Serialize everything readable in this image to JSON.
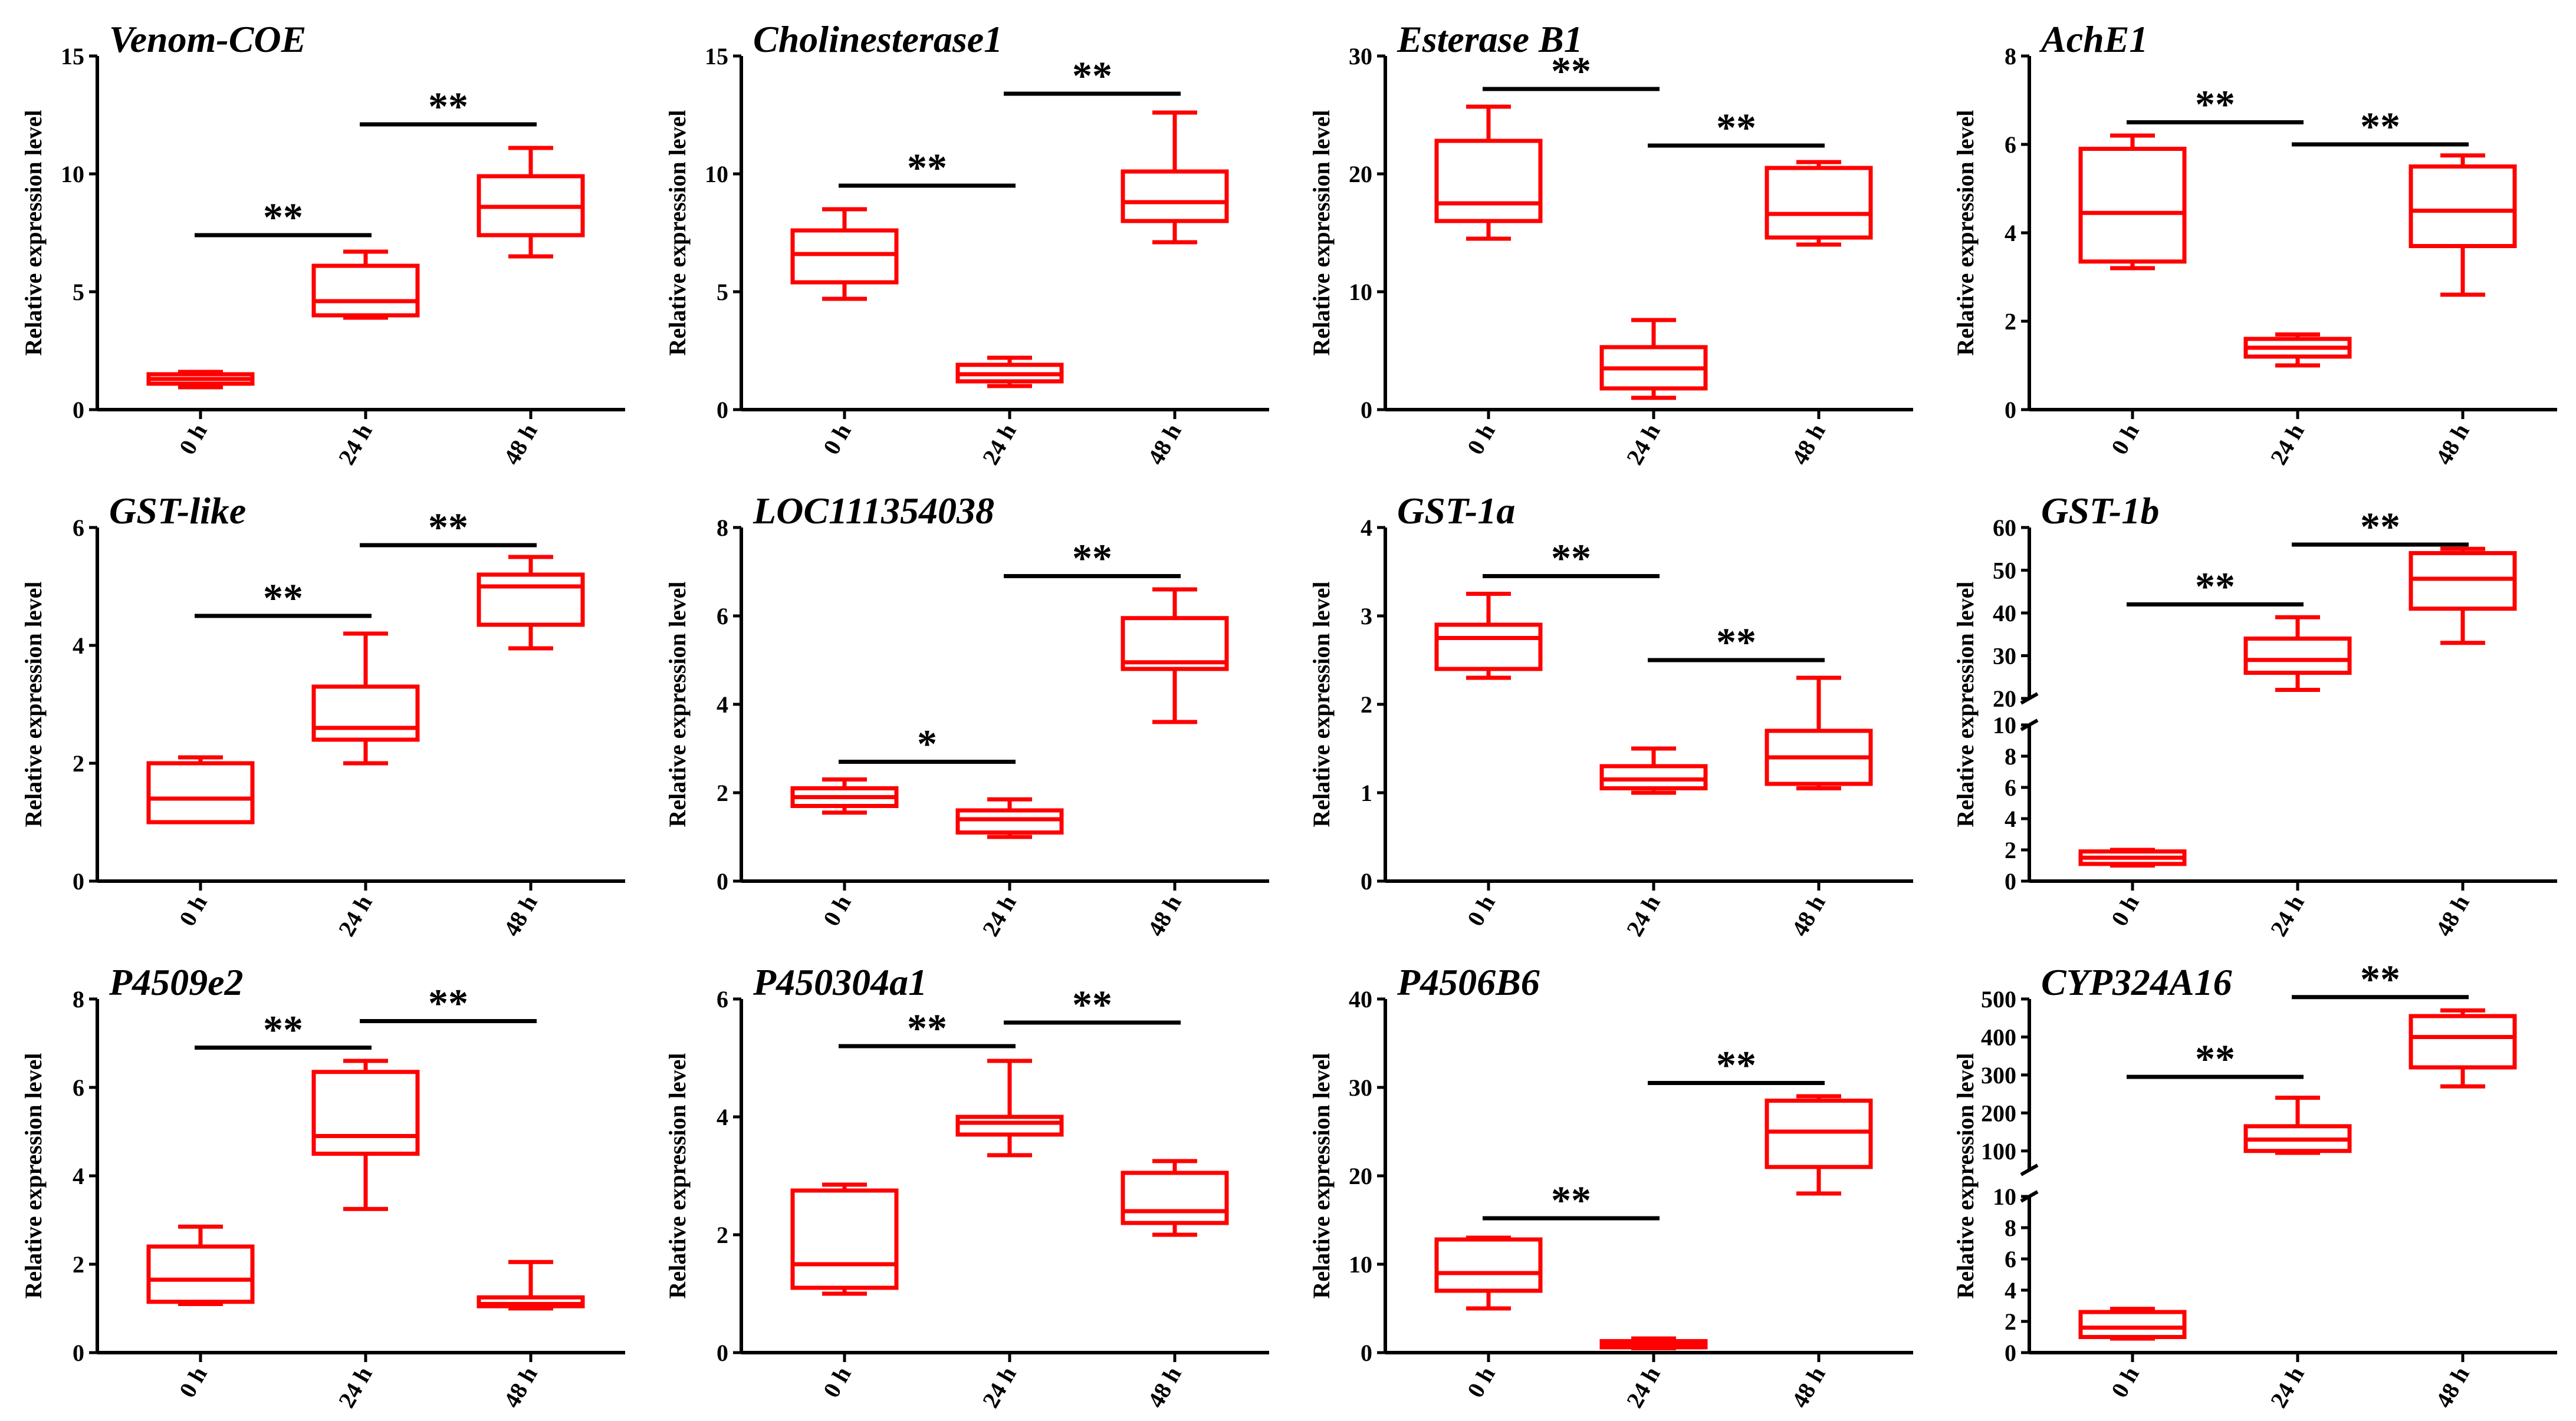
{
  "style": {
    "box_color": "#ff0000",
    "axis_color": "#000000"
  },
  "chart_data": [
    {
      "type": "box",
      "title": "Venom-COE",
      "ylabel": "Relative expression level",
      "categories": [
        "0 h",
        "24 h",
        "48 h"
      ],
      "ylim": [
        0,
        15
      ],
      "yticks": [
        0,
        5,
        10,
        15
      ],
      "boxes": [
        {
          "min": 0.95,
          "q1": 1.1,
          "median": 1.3,
          "q3": 1.5,
          "max": 1.6
        },
        {
          "min": 3.9,
          "q1": 4.0,
          "median": 4.6,
          "q3": 6.1,
          "max": 6.7
        },
        {
          "min": 6.5,
          "q1": 7.4,
          "median": 8.6,
          "q3": 9.9,
          "max": 11.1
        }
      ],
      "significance": [
        {
          "from": 0,
          "to": 1,
          "label": "**",
          "y": 7.4
        },
        {
          "from": 1,
          "to": 2,
          "label": "**",
          "y": 12.1
        }
      ]
    },
    {
      "type": "box",
      "title": "Cholinesterase1",
      "ylabel": "Relative expression level",
      "categories": [
        "0 h",
        "24 h",
        "48 h"
      ],
      "ylim": [
        0,
        15
      ],
      "yticks": [
        0,
        5,
        10,
        15
      ],
      "boxes": [
        {
          "min": 4.7,
          "q1": 5.4,
          "median": 6.6,
          "q3": 7.6,
          "max": 8.5
        },
        {
          "min": 1.0,
          "q1": 1.2,
          "median": 1.5,
          "q3": 1.9,
          "max": 2.2
        },
        {
          "min": 7.1,
          "q1": 8.0,
          "median": 8.8,
          "q3": 10.1,
          "max": 12.6
        }
      ],
      "significance": [
        {
          "from": 0,
          "to": 1,
          "label": "**",
          "y": 9.5
        },
        {
          "from": 1,
          "to": 2,
          "label": "**",
          "y": 13.4
        }
      ]
    },
    {
      "type": "box",
      "title": "Esterase B1",
      "ylabel": "Relative expression level",
      "categories": [
        "0 h",
        "24 h",
        "48 h"
      ],
      "ylim": [
        0,
        30
      ],
      "yticks": [
        0,
        10,
        20,
        30
      ],
      "boxes": [
        {
          "min": 14.5,
          "q1": 16.0,
          "median": 17.5,
          "q3": 22.8,
          "max": 25.7
        },
        {
          "min": 1.0,
          "q1": 1.8,
          "median": 3.5,
          "q3": 5.3,
          "max": 7.6
        },
        {
          "min": 14.0,
          "q1": 14.6,
          "median": 16.6,
          "q3": 20.5,
          "max": 21.0
        }
      ],
      "significance": [
        {
          "from": 0,
          "to": 1,
          "label": "**",
          "y": 27.2
        },
        {
          "from": 1,
          "to": 2,
          "label": "**",
          "y": 22.4
        }
      ]
    },
    {
      "type": "box",
      "title": "AchE1",
      "ylabel": "Relative expression level",
      "categories": [
        "0 h",
        "24 h",
        "48 h"
      ],
      "ylim": [
        0,
        8
      ],
      "yticks": [
        0,
        2,
        4,
        6,
        8
      ],
      "boxes": [
        {
          "min": 3.2,
          "q1": 3.35,
          "median": 4.45,
          "q3": 5.9,
          "max": 6.2
        },
        {
          "min": 1.0,
          "q1": 1.2,
          "median": 1.4,
          "q3": 1.6,
          "max": 1.7
        },
        {
          "min": 2.6,
          "q1": 3.7,
          "median": 4.5,
          "q3": 5.5,
          "max": 5.75
        }
      ],
      "significance": [
        {
          "from": 0,
          "to": 1,
          "label": "**",
          "y": 6.5
        },
        {
          "from": 1,
          "to": 2,
          "label": "**",
          "y": 6.0
        }
      ]
    },
    {
      "type": "box",
      "title": "GST-like",
      "ylabel": "Relative expression level",
      "categories": [
        "0 h",
        "24 h",
        "48 h"
      ],
      "ylim": [
        0,
        6
      ],
      "yticks": [
        0,
        2,
        4,
        6
      ],
      "boxes": [
        {
          "min": 1.0,
          "q1": 1.0,
          "median": 1.4,
          "q3": 2.0,
          "max": 2.1
        },
        {
          "min": 2.0,
          "q1": 2.4,
          "median": 2.6,
          "q3": 3.3,
          "max": 4.2
        },
        {
          "min": 3.95,
          "q1": 4.35,
          "median": 5.0,
          "q3": 5.2,
          "max": 5.5
        }
      ],
      "significance": [
        {
          "from": 0,
          "to": 1,
          "label": "**",
          "y": 4.5
        },
        {
          "from": 1,
          "to": 2,
          "label": "**",
          "y": 5.7
        }
      ]
    },
    {
      "type": "box",
      "title": "LOC111354038",
      "ylabel": "Relative expression level",
      "categories": [
        "0 h",
        "24 h",
        "48 h"
      ],
      "ylim": [
        0,
        8
      ],
      "yticks": [
        0,
        2,
        4,
        6,
        8
      ],
      "boxes": [
        {
          "min": 1.55,
          "q1": 1.7,
          "median": 1.9,
          "q3": 2.1,
          "max": 2.3
        },
        {
          "min": 1.0,
          "q1": 1.1,
          "median": 1.4,
          "q3": 1.6,
          "max": 1.85
        },
        {
          "min": 3.6,
          "q1": 4.8,
          "median": 4.95,
          "q3": 5.95,
          "max": 6.6
        }
      ],
      "significance": [
        {
          "from": 0,
          "to": 1,
          "label": "*",
          "y": 2.7
        },
        {
          "from": 1,
          "to": 2,
          "label": "**",
          "y": 6.9
        }
      ]
    },
    {
      "type": "box",
      "title": "GST-1a",
      "ylabel": "Relative expression level",
      "categories": [
        "0 h",
        "24 h",
        "48 h"
      ],
      "ylim": [
        0,
        4
      ],
      "yticks": [
        0,
        1,
        2,
        3,
        4
      ],
      "boxes": [
        {
          "min": 2.3,
          "q1": 2.4,
          "median": 2.75,
          "q3": 2.9,
          "max": 3.25
        },
        {
          "min": 1.0,
          "q1": 1.05,
          "median": 1.15,
          "q3": 1.3,
          "max": 1.5
        },
        {
          "min": 1.05,
          "q1": 1.1,
          "median": 1.4,
          "q3": 1.7,
          "max": 2.3
        }
      ],
      "significance": [
        {
          "from": 0,
          "to": 1,
          "label": "**",
          "y": 3.45
        },
        {
          "from": 1,
          "to": 2,
          "label": "**",
          "y": 2.5
        }
      ]
    },
    {
      "type": "box",
      "title": "GST-1b",
      "ylabel": "Relative expression level",
      "categories": [
        "0 h",
        "24 h",
        "48 h"
      ],
      "broken_axis": true,
      "ylim_lower": [
        0,
        10
      ],
      "yticks_lower": [
        0,
        2,
        4,
        6,
        8,
        10
      ],
      "ylim_upper": [
        20,
        60
      ],
      "yticks_upper": [
        20,
        30,
        40,
        50,
        60
      ],
      "boxes": [
        {
          "min": 1.0,
          "q1": 1.1,
          "median": 1.5,
          "q3": 1.9,
          "max": 2.0
        },
        {
          "min": 22,
          "q1": 26,
          "median": 29,
          "q3": 34,
          "max": 39
        },
        {
          "min": 33,
          "q1": 41,
          "median": 48,
          "q3": 54,
          "max": 55
        }
      ],
      "significance": [
        {
          "from": 0,
          "to": 1,
          "label": "**",
          "y": 42
        },
        {
          "from": 1,
          "to": 2,
          "label": "**",
          "y": 56
        }
      ]
    },
    {
      "type": "box",
      "title": "P4509e2",
      "ylabel": "Relative expression level",
      "categories": [
        "0 h",
        "24 h",
        "48 h"
      ],
      "ylim": [
        0,
        8
      ],
      "yticks": [
        0,
        2,
        4,
        6,
        8
      ],
      "boxes": [
        {
          "min": 1.1,
          "q1": 1.15,
          "median": 1.65,
          "q3": 2.4,
          "max": 2.85
        },
        {
          "min": 3.25,
          "q1": 4.5,
          "median": 4.9,
          "q3": 6.35,
          "max": 6.6
        },
        {
          "min": 1.0,
          "q1": 1.05,
          "median": 1.1,
          "q3": 1.25,
          "max": 2.05
        }
      ],
      "significance": [
        {
          "from": 0,
          "to": 1,
          "label": "**",
          "y": 6.9
        },
        {
          "from": 1,
          "to": 2,
          "label": "**",
          "y": 7.5
        }
      ]
    },
    {
      "type": "box",
      "title": "P450304a1",
      "ylabel": "Relative expression level",
      "categories": [
        "0 h",
        "24 h",
        "48 h"
      ],
      "ylim": [
        0,
        6
      ],
      "yticks": [
        0,
        2,
        4,
        6
      ],
      "boxes": [
        {
          "min": 1.0,
          "q1": 1.1,
          "median": 1.5,
          "q3": 2.75,
          "max": 2.85
        },
        {
          "min": 3.35,
          "q1": 3.7,
          "median": 3.9,
          "q3": 4.0,
          "max": 4.95
        },
        {
          "min": 2.0,
          "q1": 2.2,
          "median": 2.4,
          "q3": 3.05,
          "max": 3.25
        }
      ],
      "significance": [
        {
          "from": 0,
          "to": 1,
          "label": "**",
          "y": 5.2
        },
        {
          "from": 1,
          "to": 2,
          "label": "**",
          "y": 5.6
        }
      ]
    },
    {
      "type": "box",
      "title": "P4506B6",
      "ylabel": "Relative expression level",
      "categories": [
        "0 h",
        "24 h",
        "48 h"
      ],
      "ylim": [
        0,
        40
      ],
      "yticks": [
        0,
        10,
        20,
        30,
        40
      ],
      "boxes": [
        {
          "min": 5.0,
          "q1": 7.0,
          "median": 9.0,
          "q3": 12.8,
          "max": 13.0
        },
        {
          "min": 0.5,
          "q1": 0.6,
          "median": 0.9,
          "q3": 1.3,
          "max": 1.6
        },
        {
          "min": 18.0,
          "q1": 21.0,
          "median": 25.0,
          "q3": 28.5,
          "max": 29.0
        }
      ],
      "significance": [
        {
          "from": 0,
          "to": 1,
          "label": "**",
          "y": 15.2
        },
        {
          "from": 1,
          "to": 2,
          "label": "**",
          "y": 30.5
        }
      ]
    },
    {
      "type": "box",
      "title": "CYP324A16",
      "ylabel": "Relative expression level",
      "categories": [
        "0 h",
        "24 h",
        "48 h"
      ],
      "broken_axis": true,
      "ylim_lower": [
        0,
        10
      ],
      "yticks_lower": [
        0,
        2,
        4,
        6,
        8,
        10
      ],
      "ylim_upper": [
        50,
        500
      ],
      "yticks_upper": [
        100,
        200,
        300,
        400,
        500
      ],
      "boxes": [
        {
          "min": 0.9,
          "q1": 1.0,
          "median": 1.6,
          "q3": 2.6,
          "max": 2.8
        },
        {
          "min": 95,
          "q1": 100,
          "median": 130,
          "q3": 165,
          "max": 240
        },
        {
          "min": 270,
          "q1": 320,
          "median": 400,
          "q3": 455,
          "max": 470
        }
      ],
      "significance": [
        {
          "from": 0,
          "to": 1,
          "label": "**",
          "y": 295
        },
        {
          "from": 1,
          "to": 2,
          "label": "**",
          "y": 505
        }
      ]
    }
  ]
}
